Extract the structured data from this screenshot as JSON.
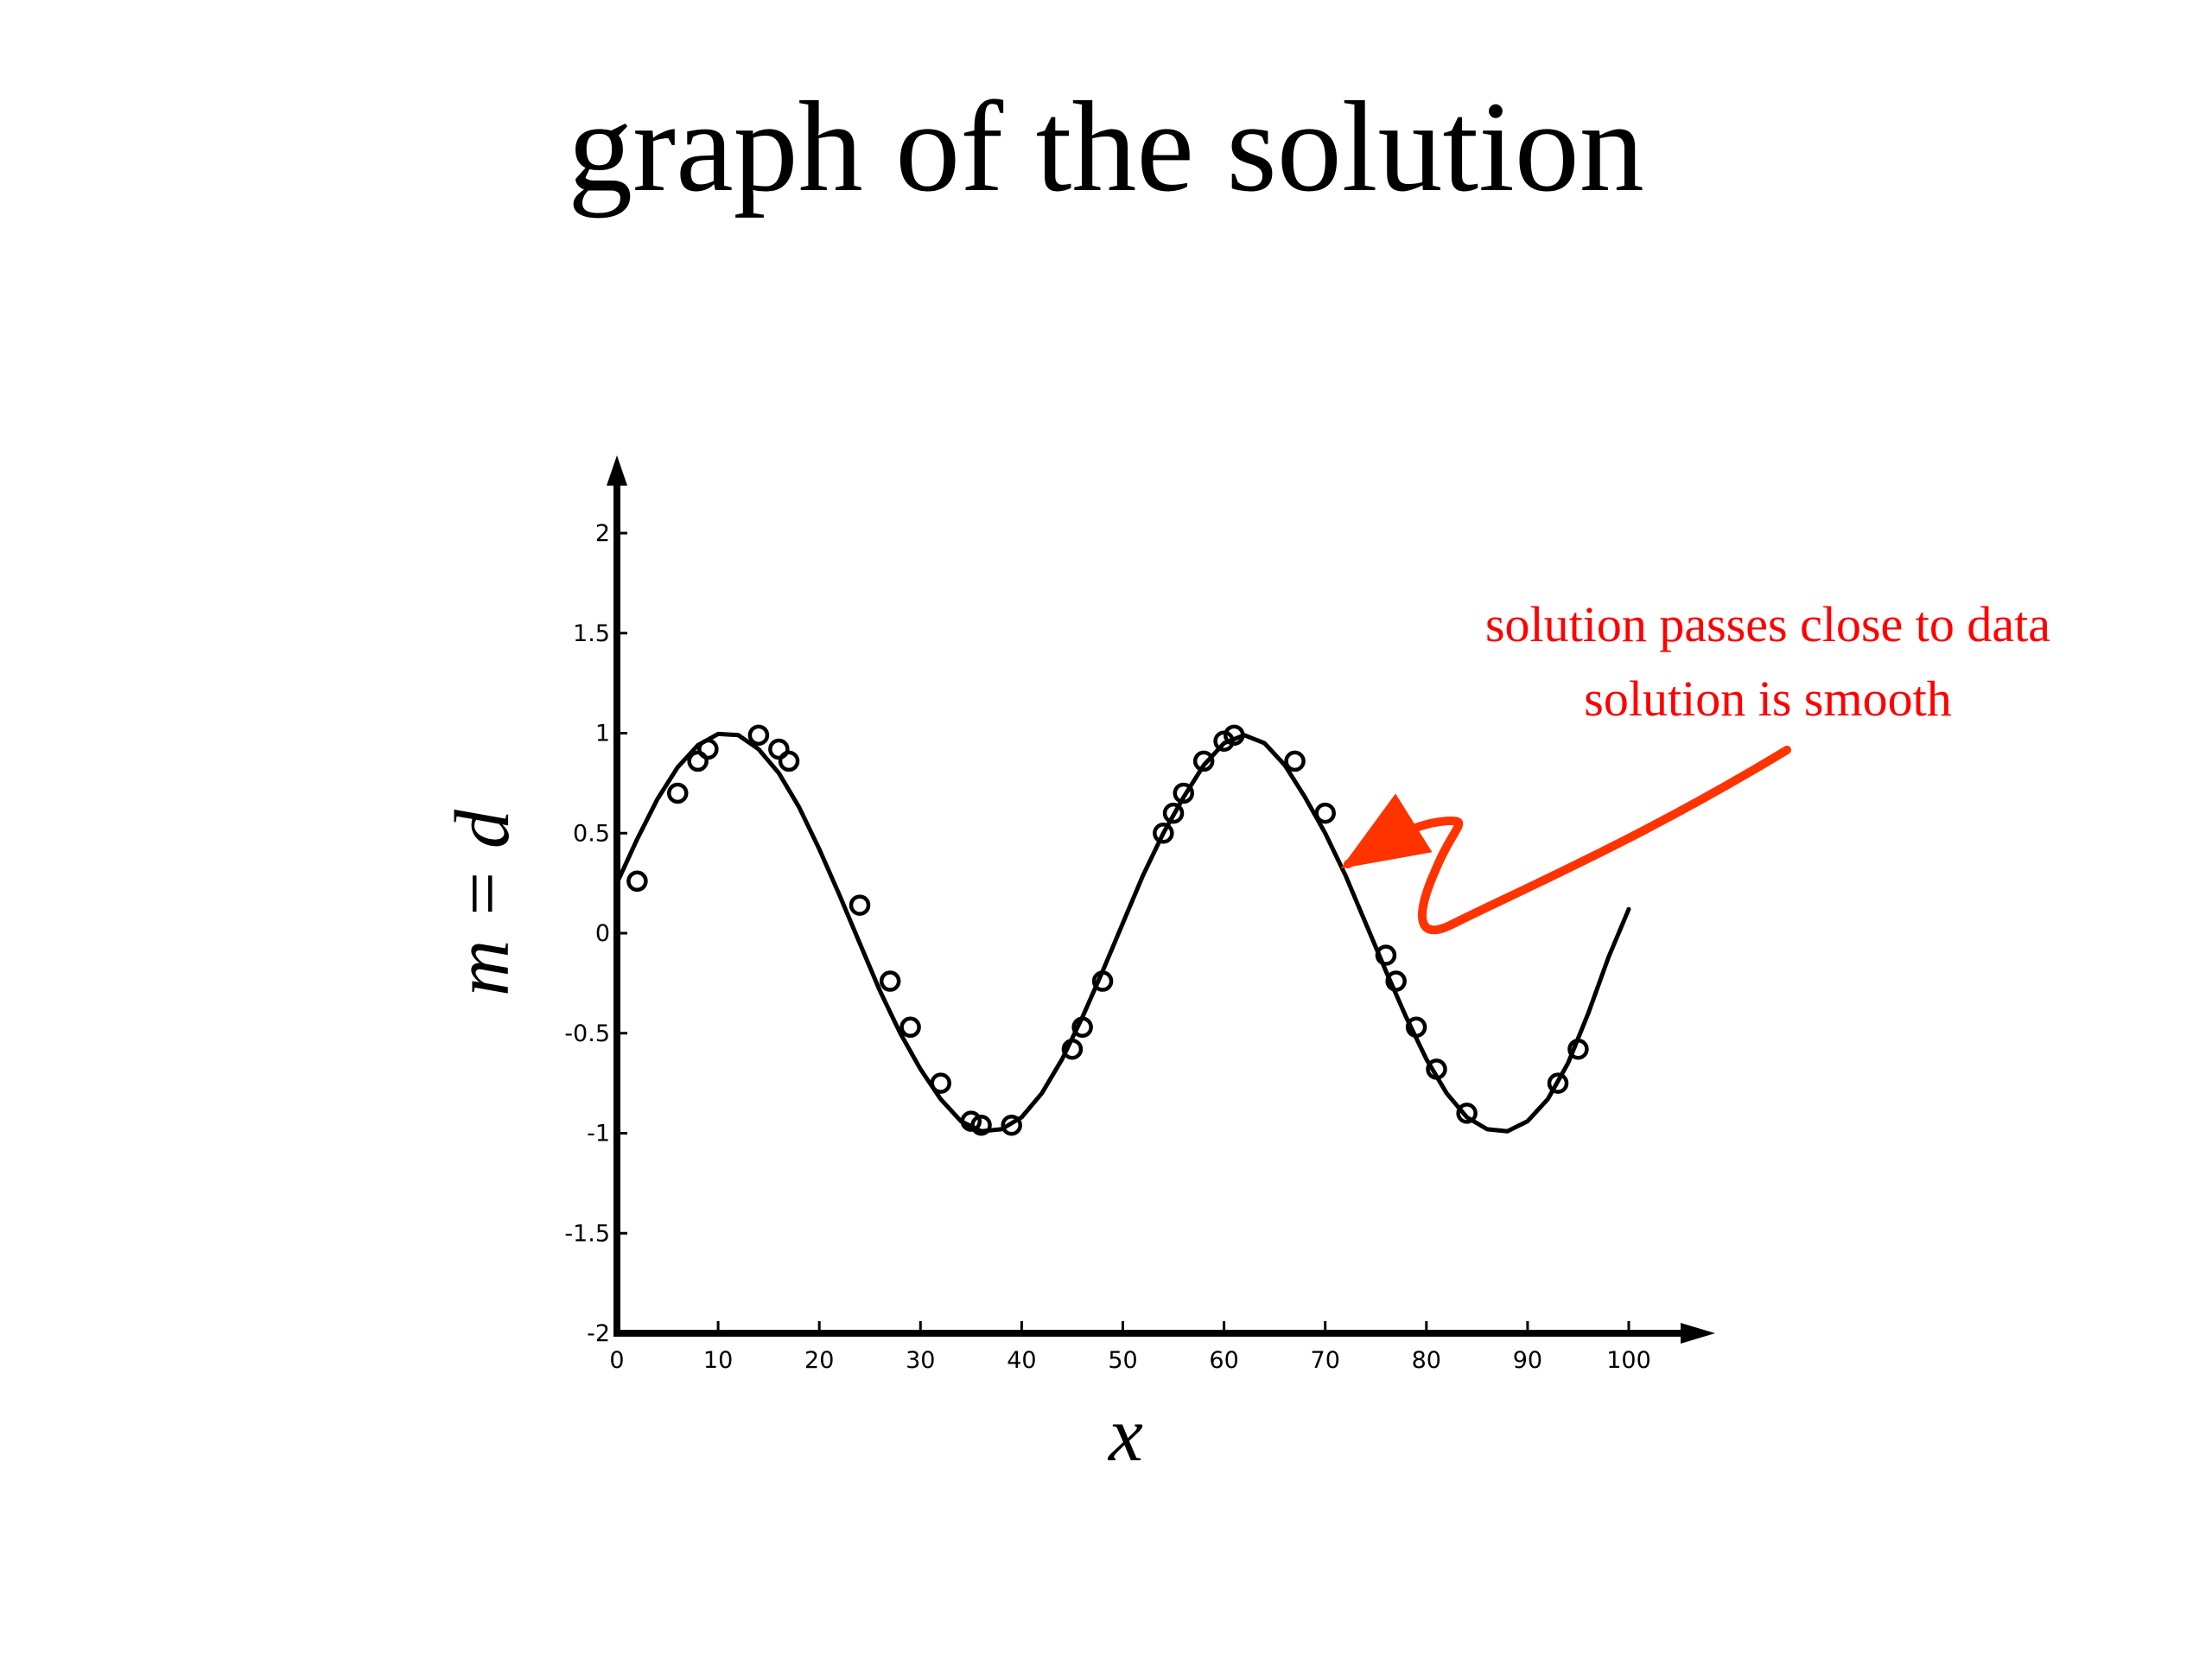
{
  "slide": {
    "title": "graph of the solution"
  },
  "chart_data": {
    "type": "scatter",
    "title": "",
    "xlabel": "x",
    "ylabel": "m = d",
    "xlim": [
      0,
      100
    ],
    "ylim": [
      -2,
      2
    ],
    "x_ticks": [
      "0",
      "10",
      "20",
      "30",
      "40",
      "50",
      "60",
      "70",
      "80",
      "90",
      "100"
    ],
    "y_ticks": [
      "2",
      "1.5",
      "1",
      "0.5",
      "0",
      "-0.5",
      "-1",
      "-1.5",
      "-2"
    ],
    "grid": false,
    "series": [
      {
        "kind": "points",
        "marker": "open-circle",
        "color": "#000000",
        "x": [
          2,
          6,
          8,
          9,
          14,
          16,
          17,
          24,
          27,
          29,
          32,
          35,
          36,
          39,
          45,
          46,
          48,
          54,
          55,
          56,
          58,
          60,
          61,
          67,
          70,
          76,
          77,
          79,
          81,
          84,
          93,
          95
        ],
        "y": [
          0.26,
          0.7,
          0.86,
          0.92,
          0.99,
          0.92,
          0.86,
          0.14,
          -0.24,
          -0.47,
          -0.75,
          -0.94,
          -0.96,
          -0.96,
          -0.58,
          -0.47,
          -0.24,
          0.5,
          0.6,
          0.7,
          0.86,
          0.96,
          0.99,
          0.86,
          0.6,
          -0.11,
          -0.24,
          -0.47,
          -0.68,
          -0.9,
          -0.75,
          -0.58
        ]
      },
      {
        "kind": "line",
        "color": "#000000",
        "x": [
          0,
          2,
          4,
          6,
          8,
          10,
          12,
          14,
          16,
          18,
          20,
          22,
          24,
          26,
          28,
          30,
          32,
          34,
          36,
          38,
          40,
          42,
          44,
          46,
          48,
          50,
          52,
          54,
          56,
          58,
          60,
          62,
          64,
          66,
          68,
          70,
          72,
          74,
          76,
          78,
          80,
          82,
          84,
          86,
          88,
          90,
          92,
          94,
          96,
          98,
          100
        ],
        "y": [
          0.25,
          0.47,
          0.67,
          0.83,
          0.94,
          0.996,
          0.99,
          0.92,
          0.8,
          0.63,
          0.42,
          0.19,
          -0.05,
          -0.29,
          -0.5,
          -0.68,
          -0.83,
          -0.94,
          -0.99,
          -0.98,
          -0.92,
          -0.8,
          -0.63,
          -0.42,
          -0.19,
          0.05,
          0.29,
          0.5,
          0.68,
          0.84,
          0.95,
          0.99,
          0.95,
          0.84,
          0.68,
          0.5,
          0.29,
          0.05,
          -0.19,
          -0.42,
          -0.63,
          -0.8,
          -0.92,
          -0.98,
          -0.99,
          -0.94,
          -0.83,
          -0.65,
          -0.4,
          -0.12,
          0.12
        ]
      }
    ],
    "annotation": {
      "lines": [
        "solution passes close to data",
        "solution is smooth"
      ],
      "color": "#ff0000",
      "arrow_color": "#ff3300"
    }
  }
}
